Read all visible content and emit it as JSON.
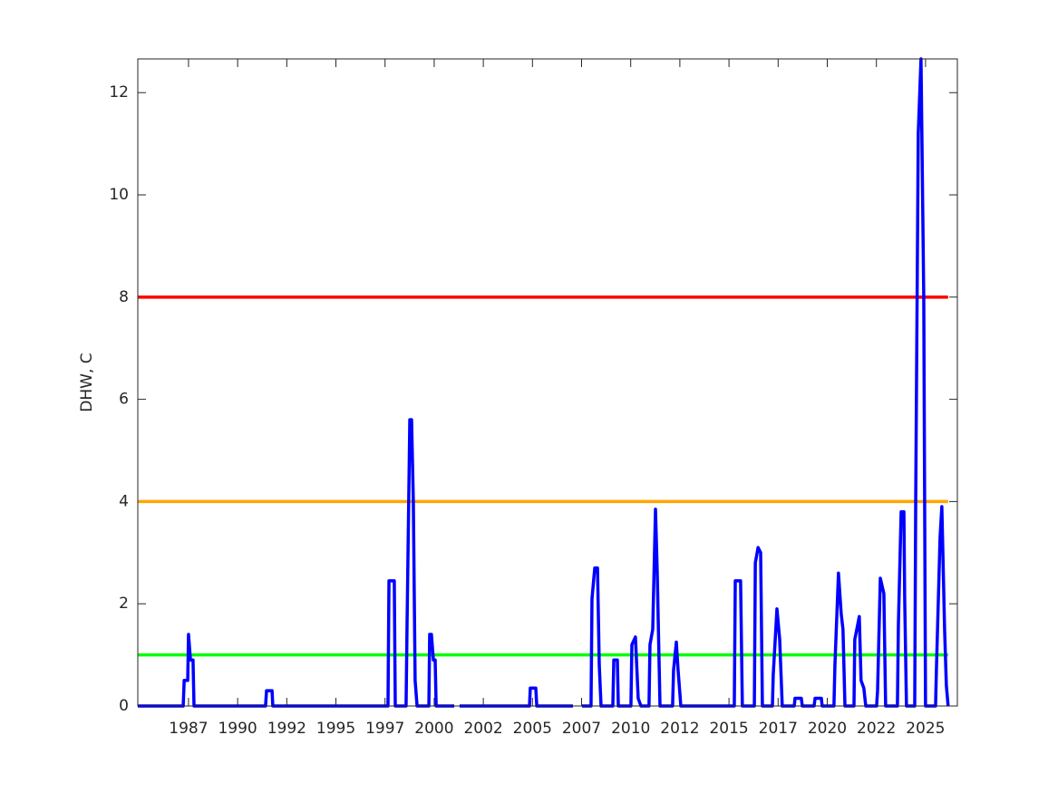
{
  "chart_data": {
    "type": "line",
    "ylabel": "DHW, C",
    "xlim": [
      1984.92,
      2026.62
    ],
    "ylim": [
      0,
      12.66
    ],
    "yticks": [
      0,
      2,
      4,
      6,
      8,
      10,
      12
    ],
    "xticks": [
      {
        "value": 1987.5,
        "label": "1987"
      },
      {
        "value": 1990,
        "label": "1990"
      },
      {
        "value": 1992.5,
        "label": "1992"
      },
      {
        "value": 1995,
        "label": "1995"
      },
      {
        "value": 1997.5,
        "label": "1997"
      },
      {
        "value": 2000,
        "label": "2000"
      },
      {
        "value": 2002.5,
        "label": "2002"
      },
      {
        "value": 2005,
        "label": "2005"
      },
      {
        "value": 2007.5,
        "label": "2007"
      },
      {
        "value": 2010,
        "label": "2010"
      },
      {
        "value": 2012.5,
        "label": "2012"
      },
      {
        "value": 2015,
        "label": "2015"
      },
      {
        "value": 2017.5,
        "label": "2017"
      },
      {
        "value": 2020,
        "label": "2020"
      },
      {
        "value": 2022.5,
        "label": "2022"
      },
      {
        "value": 2025,
        "label": "2025"
      }
    ],
    "series": [
      {
        "color": "#00ff00",
        "x": [
          1984.92,
          2026.15
        ],
        "values": [
          1,
          1
        ]
      },
      {
        "color": "#ffa500",
        "x": [
          1984.92,
          2026.15
        ],
        "values": [
          4,
          4
        ]
      },
      {
        "color": "#ff0000",
        "x": [
          1984.92,
          2026.15
        ],
        "values": [
          8,
          8
        ]
      },
      {
        "color": "#0000ff",
        "x": [
          1984.92,
          1987.23,
          1987.28,
          1987.46,
          1987.5,
          1987.6,
          1987.73,
          1987.78,
          1991.42,
          1991.47,
          1991.75,
          1991.79,
          1997.65,
          1997.7,
          1997.97,
          1998.02,
          1998.57,
          1998.62,
          1998.76,
          1998.85,
          1998.94,
          1999.03,
          1999.13,
          1999.73,
          1999.77,
          1999.86,
          1999.96,
          2000.05,
          2000.1,
          2001.02,
          2001.1,
          2001.29,
          2004.85,
          2004.89,
          2005.17,
          2005.22,
          2007.06,
          2007.3,
          2007.52,
          2007.98,
          2008.03,
          2008.17,
          2008.31,
          2008.4,
          2008.49,
          2009.09,
          2009.14,
          2009.32,
          2009.37,
          2010.01,
          2010.06,
          2010.24,
          2010.38,
          2010.52,
          2010.93,
          2010.98,
          2011.12,
          2011.26,
          2011.35,
          2011.49,
          2012.13,
          2012.18,
          2012.32,
          2012.41,
          2012.55,
          2015.27,
          2015.32,
          2015.59,
          2015.68,
          2016.29,
          2016.34,
          2016.48,
          2016.61,
          2016.7,
          2017.21,
          2017.25,
          2017.44,
          2017.58,
          2017.71,
          2018.32,
          2018.36,
          2018.68,
          2018.73,
          2019.33,
          2019.38,
          2019.7,
          2019.74,
          2020.34,
          2020.39,
          2020.57,
          2020.71,
          2020.8,
          2020.9,
          2021.36,
          2021.4,
          2021.63,
          2021.72,
          2021.86,
          2021.96,
          2022.51,
          2022.56,
          2022.7,
          2022.88,
          2022.97,
          2023.57,
          2023.62,
          2023.76,
          2023.9,
          2023.94,
          2024.03,
          2024.45,
          2024.5,
          2024.63,
          2024.77,
          2024.91,
          2025.0,
          2025.51,
          2025.56,
          2025.74,
          2025.83,
          2025.97,
          2026.06,
          2026.15
        ],
        "values": [
          0,
          0,
          0.5,
          0.5,
          1.4,
          0.9,
          0.9,
          0,
          0,
          0.3,
          0.3,
          0,
          0,
          2.45,
          2.45,
          0,
          0,
          1.6,
          5.6,
          5.6,
          4,
          0.5,
          0,
          0,
          1.4,
          1.4,
          0.9,
          0.9,
          0,
          0,
          null,
          0,
          0,
          0.35,
          0.35,
          0,
          0,
          null,
          0,
          0,
          2.1,
          2.7,
          2.7,
          0.8,
          0,
          0,
          0.9,
          0.9,
          0,
          0,
          1.2,
          1.35,
          0.15,
          0,
          0,
          1.2,
          1.5,
          3.85,
          2.6,
          0,
          0,
          0.7,
          1.25,
          0.7,
          0,
          0,
          2.45,
          2.45,
          0,
          0,
          2.8,
          3.1,
          3.0,
          0,
          0,
          0.6,
          1.9,
          1.3,
          0,
          0,
          0.15,
          0.15,
          0,
          0,
          0.15,
          0.15,
          0,
          0,
          0.8,
          2.6,
          1.8,
          1.5,
          0,
          0,
          1.3,
          1.75,
          0.5,
          0.35,
          0,
          0,
          0.3,
          2.5,
          2.2,
          0,
          0,
          1.6,
          3.8,
          3.8,
          2.1,
          0,
          0,
          4,
          11.2,
          12.66,
          8,
          0,
          0,
          0.8,
          3.3,
          3.9,
          1.5,
          0.4,
          0
        ]
      }
    ]
  }
}
